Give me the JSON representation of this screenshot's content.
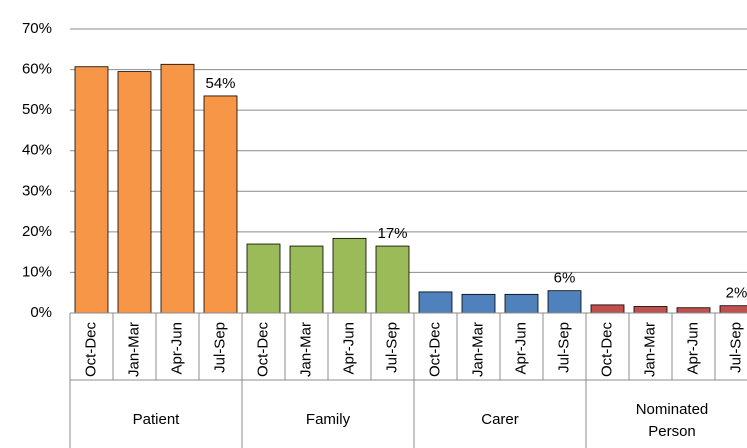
{
  "chart_data": {
    "type": "bar",
    "ylim": [
      0,
      70
    ],
    "yticks": [
      {
        "value": 0,
        "label": "0%"
      },
      {
        "value": 10,
        "label": "10%"
      },
      {
        "value": 20,
        "label": "20%"
      },
      {
        "value": 30,
        "label": "30%"
      },
      {
        "value": 40,
        "label": "40%"
      },
      {
        "value": 50,
        "label": "50%"
      },
      {
        "value": 60,
        "label": "60%"
      },
      {
        "value": 70,
        "label": "70%"
      }
    ],
    "grid": true,
    "groups": [
      {
        "name": "Patient",
        "color": "#f79646",
        "categories": [
          "Oct-Dec",
          "Jan-Mar",
          "Apr-Jun",
          "Jul-Sep"
        ],
        "values": [
          60.7,
          59.5,
          61.3,
          53.5
        ],
        "value_labels": [
          null,
          null,
          null,
          "54%"
        ]
      },
      {
        "name": "Family",
        "color": "#9bbb59",
        "categories": [
          "Oct-Dec",
          "Jan-Mar",
          "Apr-Jun",
          "Jul-Sep"
        ],
        "values": [
          17.0,
          16.5,
          18.4,
          16.5
        ],
        "value_labels": [
          null,
          null,
          null,
          "17%"
        ]
      },
      {
        "name": "Carer",
        "color": "#4f81bd",
        "categories": [
          "Oct-Dec",
          "Jan-Mar",
          "Apr-Jun",
          "Jul-Sep"
        ],
        "values": [
          5.2,
          4.6,
          4.6,
          5.5
        ],
        "value_labels": [
          null,
          null,
          null,
          "6%"
        ]
      },
      {
        "name": "Nominated Person",
        "color": "#c0504d",
        "categories": [
          "Oct-Dec",
          "Jan-Mar",
          "Apr-Jun",
          "Jul-Sep"
        ],
        "values": [
          2.0,
          1.6,
          1.3,
          1.8
        ],
        "value_labels": [
          null,
          null,
          null,
          "2%"
        ]
      }
    ]
  }
}
